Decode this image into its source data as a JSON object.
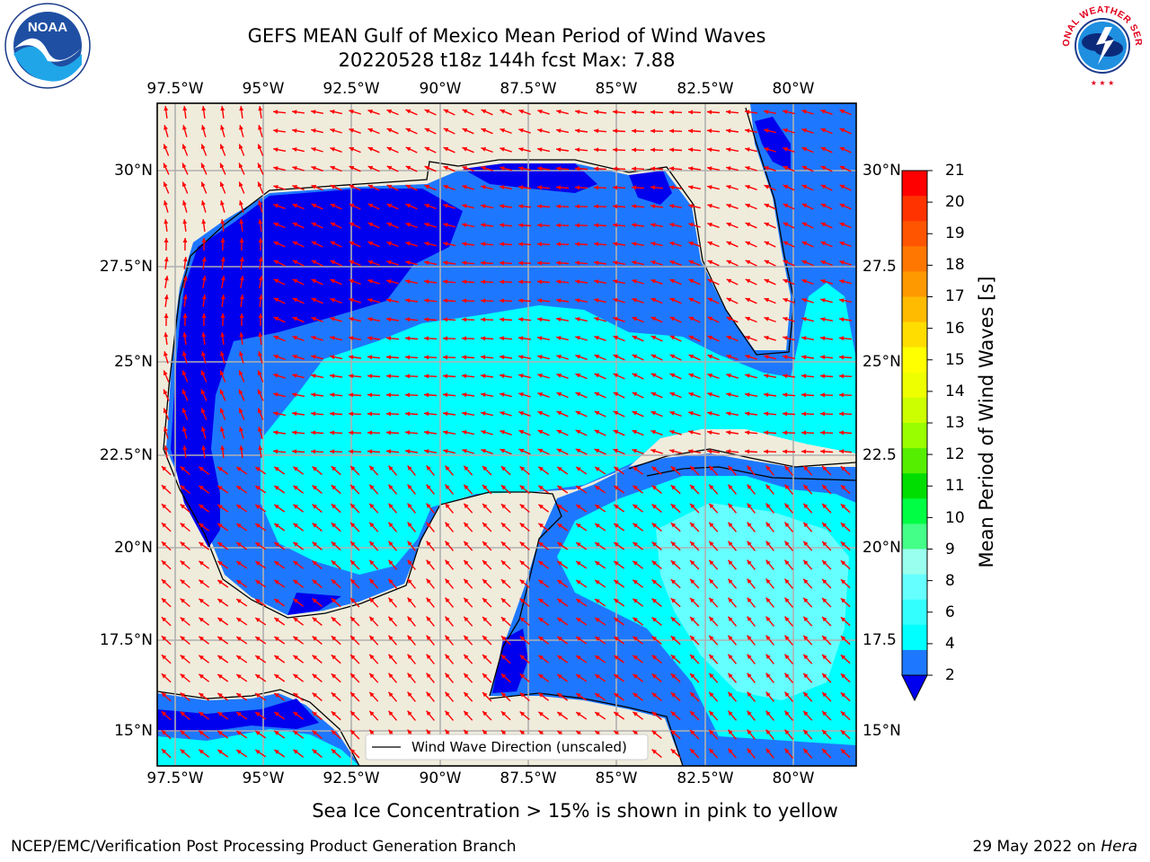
{
  "header": {
    "title_line1": "GEFS MEAN Gulf of Mexico Mean Period of Wind Waves",
    "title_line2": "20220528 t18z 144h fcst   Max: 7.88"
  },
  "axes": {
    "lon_ticks": [
      "97.5°W",
      "95°W",
      "92.5°W",
      "90°W",
      "87.5°W",
      "85°W",
      "82.5°W",
      "80°W"
    ],
    "lat_ticks_left": [
      "30°N",
      "27.5°N",
      "25°N",
      "22.5°N",
      "20°N",
      "17.5°N",
      "15°N"
    ],
    "lat_ticks_right": [
      "30°N",
      "27.5",
      "25°N",
      "22.5",
      "20°N",
      "17.5",
      "15°N"
    ]
  },
  "map": {
    "legend_text": "Wind Wave Direction (unscaled)",
    "colors": {
      "land": "#efecdc",
      "ocean_2_4": "#1e78ff",
      "ocean_lt2": "#0000ee",
      "ocean_4_6": "#00ffff",
      "ocean_6_8": "#66ffff",
      "arrow": "#ff0000",
      "grid": "#b0b0b0"
    }
  },
  "colorbar": {
    "title": "Mean Period of Wind Waves [s]",
    "ticks": [
      "21",
      "20",
      "19",
      "18",
      "17",
      "16",
      "15",
      "14",
      "13",
      "12",
      "11",
      "10",
      "9",
      "8",
      "6",
      "4",
      "2"
    ],
    "colors": [
      "#ff0000",
      "#ff3300",
      "#ff5500",
      "#ff7700",
      "#ff9900",
      "#ffbb00",
      "#ffdd00",
      "#ffff00",
      "#eeff00",
      "#ccff00",
      "#99ff00",
      "#55ee00",
      "#00dd00",
      "#00ff44",
      "#44ff88",
      "#99ffee",
      "#66ffff",
      "#33ffff",
      "#00ffff",
      "#1e78ff",
      "#0000ee"
    ]
  },
  "footer": {
    "note": "Sea Ice Concentration > 15% is shown in pink to yellow",
    "left": "NCEP/EMC/Verification Post Processing Product Generation Branch",
    "right_date": "29 May 2022 on ",
    "right_host": "Hera"
  },
  "logos": {
    "noaa_text": "NOAA",
    "nws_text": "NATIONAL WEATHER SERVICE"
  }
}
